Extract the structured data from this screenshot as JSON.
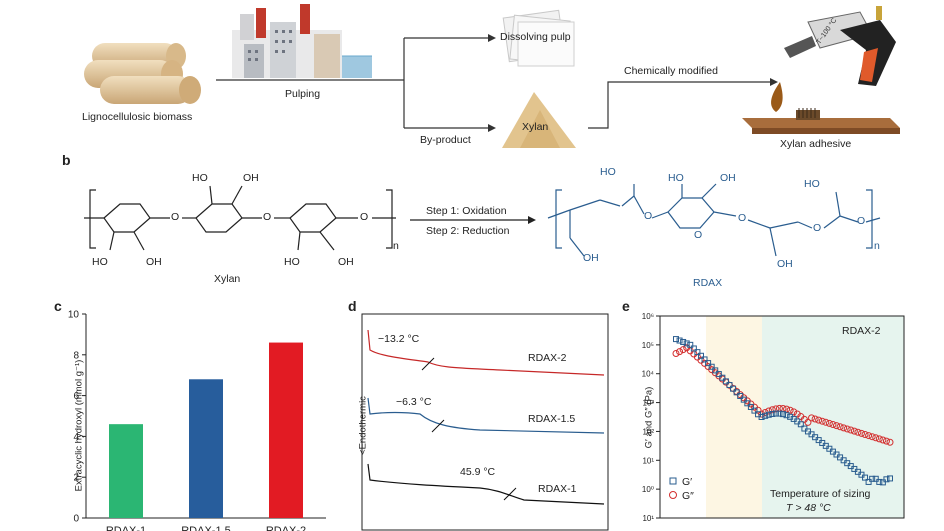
{
  "panel_a": {
    "lignocellulosic_label": "Lignocellulosic biomass",
    "pulping_label": "Pulping",
    "dissolving_pulp_label": "Dissolving pulp",
    "xylan_label": "Xylan",
    "byproduct_label": "By-product",
    "chem_modified_label": "Chemically modified",
    "xylan_adhesive_label": "Xylan adhesive",
    "glue_gun_temp": "T~100 °C"
  },
  "panel_b": {
    "letter": "b",
    "xylan_name": "Xylan",
    "rdax_name": "RDAX",
    "step1": "Step 1: Oxidation",
    "step2": "Step 2: Reduction",
    "subscript_n": "n",
    "ho": "HO",
    "oh": "OH",
    "o": "O"
  },
  "panel_c": {
    "letter": "c",
    "chart_data": {
      "type": "bar",
      "categories": [
        "RDAX-1",
        "RDAX-1.5",
        "RDAX-2"
      ],
      "values": [
        4.6,
        6.8,
        8.6
      ],
      "ylabel": "Extracyclic hydroxyl (mmol g⁻¹)",
      "ylim": [
        0,
        10
      ],
      "yticks": [
        "0",
        "2",
        "4",
        "6",
        "8",
        "10"
      ],
      "colors": [
        "#2bb673",
        "#275d9c",
        "#e21b23"
      ]
    }
  },
  "panel_d": {
    "letter": "d",
    "chart_data": {
      "type": "line",
      "ylabel": "<Endothermic",
      "series": [
        {
          "name": "RDAX-2",
          "tg": "−13.2 °C",
          "color": "#c62828"
        },
        {
          "name": "RDAX-1.5",
          "tg": "−6.3 °C",
          "color": "#2a5d8f"
        },
        {
          "name": "RDAX-1",
          "tg": "45.9 °C",
          "color": "#111111"
        }
      ]
    }
  },
  "panel_e": {
    "letter": "e",
    "chart_data": {
      "type": "scatter",
      "title": "RDAX-2",
      "ylabel": "G′ and G″ (Pa)",
      "yscale": "log",
      "yticks": [
        "10¹",
        "10⁰",
        "10¹",
        "10²",
        "10³",
        "10⁴",
        "10⁵",
        "10⁶"
      ],
      "series": [
        {
          "name": "G′",
          "color": "#2a5d8f",
          "marker": "square"
        },
        {
          "name": "G″",
          "color": "#d32f2f",
          "marker": "circle"
        }
      ],
      "annotation_line1": "Temperature of sizing",
      "annotation_line2": "T > 48 °C",
      "shade_colors": [
        "#fdf6e3",
        "#e6f4ee"
      ]
    }
  }
}
